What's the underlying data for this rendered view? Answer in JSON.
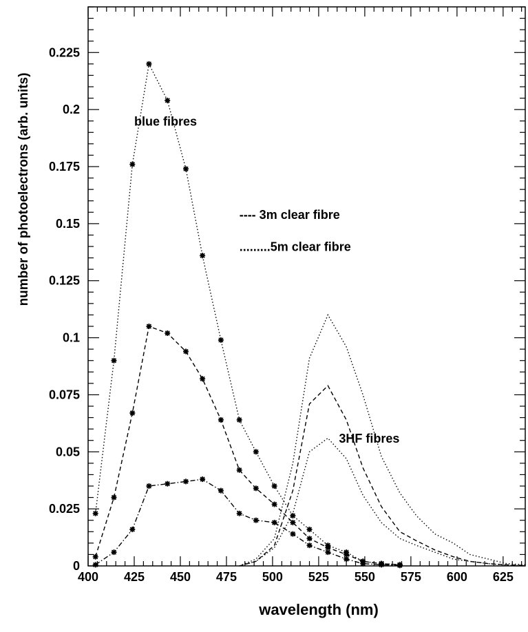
{
  "chart_data": {
    "type": "line",
    "xlabel": "wavelength (nm)",
    "ylabel": "number of photoelectrons (arb. units)",
    "xlim": [
      400,
      637
    ],
    "ylim": [
      0,
      0.245
    ],
    "x_ticks": [
      {
        "value": 400,
        "label": "400"
      },
      {
        "value": 425,
        "label": "425"
      },
      {
        "value": 450,
        "label": "450"
      },
      {
        "value": 475,
        "label": "475"
      },
      {
        "value": 500,
        "label": "500"
      },
      {
        "value": 525,
        "label": "525"
      },
      {
        "value": 550,
        "label": "550"
      },
      {
        "value": 575,
        "label": "575"
      },
      {
        "value": 600,
        "label": "600"
      },
      {
        "value": 625,
        "label": "625"
      }
    ],
    "y_ticks": [
      {
        "value": 0,
        "label": "0"
      },
      {
        "value": 0.025,
        "label": "0.025"
      },
      {
        "value": 0.05,
        "label": "0.05"
      },
      {
        "value": 0.075,
        "label": "0.075"
      },
      {
        "value": 0.1,
        "label": "0.1"
      },
      {
        "value": 0.125,
        "label": "0.125"
      },
      {
        "value": 0.15,
        "label": "0.15"
      },
      {
        "value": 0.175,
        "label": "0.175"
      },
      {
        "value": 0.2,
        "label": "0.2"
      },
      {
        "value": 0.225,
        "label": "0.225"
      }
    ],
    "annotations": [
      {
        "text": "blue fibres",
        "x": 425,
        "y": 0.193
      },
      {
        "text": "---- 3m clear fibre",
        "x": 482,
        "y": 0.152
      },
      {
        "text": ".........5m clear fibre",
        "x": 482,
        "y": 0.138
      },
      {
        "text": "3HF fibres",
        "x": 536,
        "y": 0.054
      }
    ],
    "series": [
      {
        "line": "dotted",
        "markers": true,
        "x": [
          404,
          414,
          424,
          433,
          443,
          453,
          462,
          472,
          482,
          491,
          501,
          511,
          520,
          530,
          540,
          549,
          559,
          569
        ],
        "values": [
          0.023,
          0.09,
          0.176,
          0.22,
          0.204,
          0.174,
          0.136,
          0.099,
          0.064,
          0.05,
          0.035,
          0.022,
          0.016,
          0.009,
          0.006,
          0.002,
          0.001,
          0.0005
        ]
      },
      {
        "line": "dashed",
        "markers": true,
        "x": [
          404,
          414,
          424,
          433,
          443,
          453,
          462,
          472,
          482,
          491,
          501,
          511,
          520,
          530,
          540,
          549,
          559,
          569
        ],
        "values": [
          0.004,
          0.03,
          0.067,
          0.105,
          0.102,
          0.094,
          0.082,
          0.064,
          0.042,
          0.034,
          0.027,
          0.019,
          0.012,
          0.008,
          0.005,
          0.002,
          0.001,
          0.0005
        ]
      },
      {
        "line": "dash-dot",
        "markers": true,
        "x": [
          404,
          414,
          424,
          433,
          443,
          453,
          462,
          472,
          482,
          491,
          501,
          511,
          520,
          530,
          540,
          549,
          559,
          569
        ],
        "values": [
          0.0005,
          0.006,
          0.016,
          0.035,
          0.036,
          0.037,
          0.038,
          0.033,
          0.023,
          0.02,
          0.019,
          0.014,
          0.009,
          0.006,
          0.003,
          0.001,
          0.0005,
          0.0002
        ]
      },
      {
        "line": "dotted",
        "markers": false,
        "x": [
          482,
          491,
          501,
          511,
          520,
          530,
          540,
          549,
          559,
          569,
          578,
          588,
          598,
          607,
          617,
          627,
          637
        ],
        "values": [
          0,
          0.003,
          0.012,
          0.045,
          0.091,
          0.11,
          0.096,
          0.075,
          0.048,
          0.032,
          0.022,
          0.014,
          0.01,
          0.005,
          0.003,
          0.001,
          0.0005
        ]
      },
      {
        "line": "dashed",
        "markers": false,
        "x": [
          482,
          491,
          501,
          511,
          520,
          530,
          540,
          549,
          559,
          569,
          578,
          588,
          598,
          607,
          617,
          627,
          637
        ],
        "values": [
          0,
          0.002,
          0.009,
          0.033,
          0.071,
          0.079,
          0.064,
          0.043,
          0.026,
          0.015,
          0.011,
          0.007,
          0.004,
          0.002,
          0.001,
          0.0005,
          0.0002
        ]
      },
      {
        "line": "dotted",
        "markers": false,
        "x": [
          482,
          491,
          501,
          511,
          520,
          530,
          540,
          549,
          559,
          569,
          578,
          588,
          598,
          607,
          617,
          627,
          637
        ],
        "values": [
          0,
          0.002,
          0.008,
          0.023,
          0.05,
          0.056,
          0.047,
          0.031,
          0.019,
          0.012,
          0.009,
          0.006,
          0.003,
          0.002,
          0.001,
          0.0003,
          0.0001
        ]
      }
    ]
  }
}
